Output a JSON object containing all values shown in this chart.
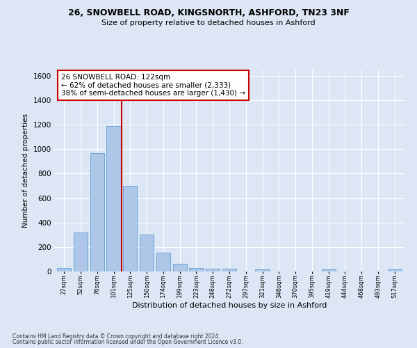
{
  "title1": "26, SNOWBELL ROAD, KINGSNORTH, ASHFORD, TN23 3NF",
  "title2": "Size of property relative to detached houses in Ashford",
  "xlabel": "Distribution of detached houses by size in Ashford",
  "ylabel": "Number of detached properties",
  "bar_color": "#aec6e8",
  "bar_edge_color": "#5a9fd4",
  "categories": [
    "27sqm",
    "52sqm",
    "76sqm",
    "101sqm",
    "125sqm",
    "150sqm",
    "174sqm",
    "199sqm",
    "223sqm",
    "248sqm",
    "272sqm",
    "297sqm",
    "321sqm",
    "346sqm",
    "370sqm",
    "395sqm",
    "419sqm",
    "444sqm",
    "468sqm",
    "493sqm",
    "517sqm"
  ],
  "values": [
    30,
    320,
    970,
    1190,
    700,
    300,
    155,
    65,
    30,
    20,
    20,
    0,
    15,
    0,
    0,
    0,
    15,
    0,
    0,
    0,
    15
  ],
  "ylim": [
    0,
    1650
  ],
  "yticks": [
    0,
    200,
    400,
    600,
    800,
    1000,
    1200,
    1400,
    1600
  ],
  "vline_color": "#cc0000",
  "annotation_text": "26 SNOWBELL ROAD: 122sqm\n← 62% of detached houses are smaller (2,333)\n38% of semi-detached houses are larger (1,430) →",
  "annotation_box_color": "#cc0000",
  "footer1": "Contains HM Land Registry data © Crown copyright and database right 2024.",
  "footer2": "Contains public sector information licensed under the Open Government Licence v3.0.",
  "bg_color": "#dce6f5",
  "plot_bg_color": "#dce6f5",
  "grid_color": "#ffffff"
}
